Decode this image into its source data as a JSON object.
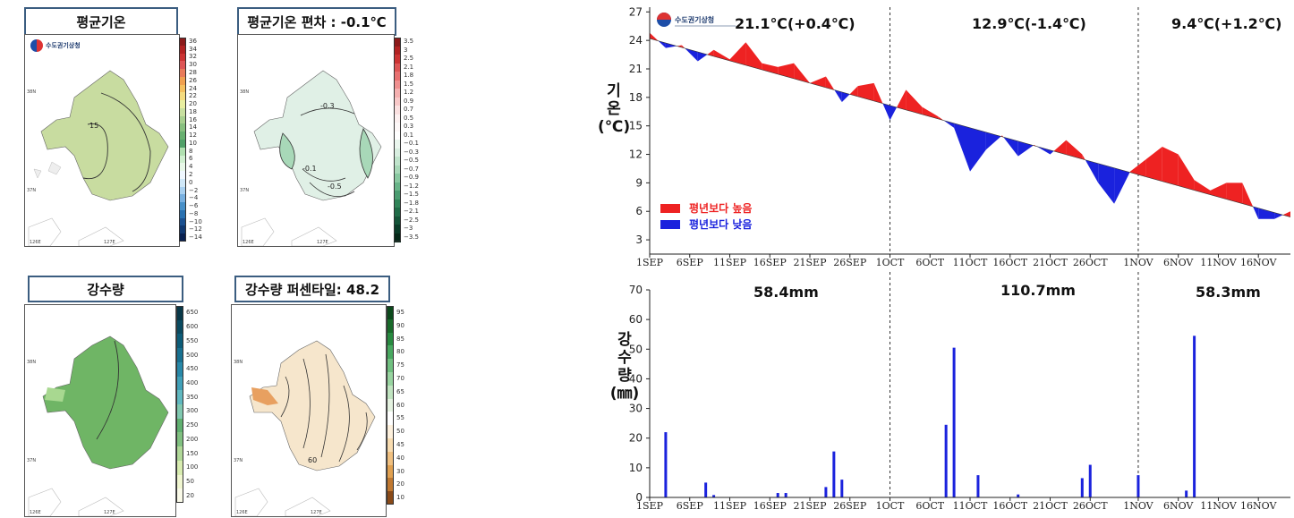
{
  "maps": {
    "temp": {
      "title": "평균기온",
      "legend": [
        "36",
        "34",
        "32",
        "30",
        "28",
        "26",
        "24",
        "22",
        "20",
        "18",
        "16",
        "14",
        "12",
        "10",
        "8",
        "6",
        "4",
        "2",
        "0",
        "−2",
        "−4",
        "−6",
        "−8",
        "−10",
        "−12",
        "−14"
      ],
      "legend_colors": [
        "#8b1a1a",
        "#b22222",
        "#cc3333",
        "#dd5555",
        "#e87a5a",
        "#f0a050",
        "#f5c060",
        "#f5dc80",
        "#e8eea0",
        "#c8e0a0",
        "#a8d090",
        "#88c080",
        "#68b070",
        "#50a068",
        "#b0e0b0",
        "#d0f0d0",
        "#e8f8e8",
        "#f0f8ff",
        "#d0e8f8",
        "#a8d0f0",
        "#78b0e0",
        "#4890c8",
        "#2870b0",
        "#1a5090",
        "#103870",
        "#082050"
      ],
      "contour_label": "15",
      "fill": "#c8dca0",
      "lat_labels": [
        "38N",
        "37N"
      ],
      "lon_labels": [
        "126E",
        "127E"
      ]
    },
    "temp_anom": {
      "title": "평균기온 편차 : -0.1℃",
      "legend": [
        "3.5",
        "3",
        "2.5",
        "2.1",
        "1.8",
        "1.5",
        "1.2",
        "0.9",
        "0.7",
        "0.5",
        "0.3",
        "0.1",
        "−0.1",
        "−0.3",
        "−0.5",
        "−0.7",
        "−0.9",
        "−1.2",
        "−1.5",
        "−1.8",
        "−2.1",
        "−2.5",
        "−3",
        "−3.5"
      ],
      "legend_colors": [
        "#8b1a1a",
        "#b22222",
        "#cc3333",
        "#dd5555",
        "#e87070",
        "#f09090",
        "#f5b0b0",
        "#f8c8c8",
        "#fae0e0",
        "#fcf0f0",
        "#fdf8f8",
        "#ffffff",
        "#eaf6ee",
        "#d8eee0",
        "#c0e4cc",
        "#a8d8b8",
        "#88c8a0",
        "#68b488",
        "#4a9c70",
        "#308458",
        "#206c48",
        "#145438",
        "#0a3c28",
        "#052818"
      ],
      "contour_labels": [
        "-0.3",
        "-0.1",
        "-0.5"
      ],
      "fill": "#e0f0e6",
      "lat_labels": [
        "38N",
        "37N"
      ],
      "lon_labels": [
        "126E",
        "127E"
      ]
    },
    "precip": {
      "title": "강수량",
      "legend": [
        "650",
        "600",
        "550",
        "500",
        "450",
        "400",
        "350",
        "300",
        "250",
        "200",
        "150",
        "100",
        "50",
        "20"
      ],
      "legend_colors": [
        "#083848",
        "#0a4a60",
        "#0c5c78",
        "#187090",
        "#2888a8",
        "#40a0b8",
        "#60b8c0",
        "#80c8b0",
        "#60b070",
        "#80c080",
        "#b0d898",
        "#d8ecb0",
        "#f0f6d0",
        "#fafae8"
      ],
      "fill": "#6fb565",
      "lat_labels": [
        "38N",
        "37N"
      ],
      "lon_labels": [
        "126E",
        "127E"
      ]
    },
    "precip_pct": {
      "title": "강수량 퍼센타일: 48.2",
      "legend": [
        "95",
        "90",
        "85",
        "80",
        "75",
        "70",
        "65",
        "60",
        "55",
        "50",
        "45",
        "40",
        "30",
        "20",
        "10"
      ],
      "legend_colors": [
        "#0c4a1c",
        "#186a2a",
        "#288a40",
        "#48a860",
        "#70c080",
        "#98d4a0",
        "#c0e4c0",
        "#e4f2e0",
        "#ffffff",
        "#fdf0dc",
        "#f8dcb0",
        "#f0c080",
        "#e0a050",
        "#c07830",
        "#8a4a18"
      ],
      "contour_label": "60",
      "fill": "#f6e6cc",
      "lat_labels": [
        "38N",
        "37N"
      ],
      "lon_labels": [
        "126E",
        "127E"
      ]
    }
  },
  "logo_text": "수도권기상청",
  "temp_chart": {
    "ylabel_chars": [
      "기",
      "온"
    ],
    "ylabel_unit": "(℃)",
    "legend_above": "평년보다 높음",
    "legend_below": "평년보다 낮음",
    "color_above": "#ee2222",
    "color_below": "#1a22dd",
    "periods": [
      "21.1℃(+0.4℃)",
      "12.9℃(-1.4℃)",
      "9.4℃(+1.2℃)"
    ]
  },
  "precip_chart": {
    "ylabel_chars": [
      "강",
      "수",
      "량"
    ],
    "ylabel_unit": "(㎜)",
    "periods": [
      "58.4mm",
      "110.7mm",
      "58.3mm"
    ]
  },
  "chart_data": [
    {
      "type": "area",
      "ylabel": "기온(℃)",
      "ylim": [
        1.5,
        27.5
      ],
      "yticks": [
        3,
        6,
        9,
        12,
        15,
        18,
        21,
        24,
        27
      ],
      "xticks": [
        "1SEP",
        "6SEP",
        "11SEP",
        "16SEP",
        "21SEP",
        "26SEP",
        "1OCT",
        "6OCT",
        "11OCT",
        "16OCT",
        "21OCT",
        "26OCT",
        "1NOV",
        "6NOV",
        "11NOV",
        "16NOV"
      ],
      "x_day_range": [
        0,
        80
      ],
      "series": [
        {
          "name": "",
          "x": [
            0,
            2,
            4,
            6,
            8,
            10,
            12,
            14,
            16,
            18,
            20,
            22,
            24,
            26,
            28,
            30,
            32,
            34,
            36,
            38,
            40,
            42,
            44,
            46,
            48,
            50,
            52,
            54,
            56,
            58,
            60,
            62,
            64,
            66,
            68,
            70,
            72,
            74,
            76,
            78,
            80
          ],
          "values": [
            24.8,
            23.2,
            23.5,
            21.8,
            23.0,
            22.0,
            23.8,
            21.6,
            21.2,
            21.6,
            19.5,
            20.2,
            17.5,
            19.2,
            19.5,
            15.6,
            18.8,
            17.0,
            16.0,
            14.8,
            10.2,
            12.5,
            14.0,
            11.8,
            13.0,
            12.0,
            13.5,
            12.0,
            9.0,
            6.8,
            10.2,
            11.5,
            12.8,
            12.0,
            9.3,
            8.2,
            9.0,
            9.0,
            5.2,
            5.2,
            6.0
          ]
        },
        {
          "name": "",
          "x": [
            0,
            80
          ],
          "values": [
            24.2,
            5.4
          ]
        }
      ]
    },
    {
      "type": "bar",
      "ylabel": "강수량(㎜)",
      "ylim": [
        0,
        70
      ],
      "yticks": [
        0,
        10,
        20,
        30,
        40,
        50,
        60,
        70
      ],
      "xticks": [
        "1SEP",
        "6SEP",
        "11SEP",
        "16SEP",
        "21SEP",
        "26SEP",
        "1OCT",
        "6OCT",
        "11OCT",
        "16OCT",
        "21OCT",
        "26OCT",
        "1NOV",
        "6NOV",
        "11NOV",
        "16NOV"
      ],
      "x": [
        2,
        7,
        8,
        16,
        17,
        22,
        23,
        24,
        37,
        38,
        41,
        46,
        54,
        55,
        61,
        67,
        68
      ],
      "values": [
        22,
        5,
        0.8,
        1.5,
        1.5,
        3.5,
        15.5,
        6,
        24.5,
        50.5,
        7.5,
        1,
        6.5,
        11,
        7.5,
        2.3,
        54.5
      ]
    }
  ]
}
